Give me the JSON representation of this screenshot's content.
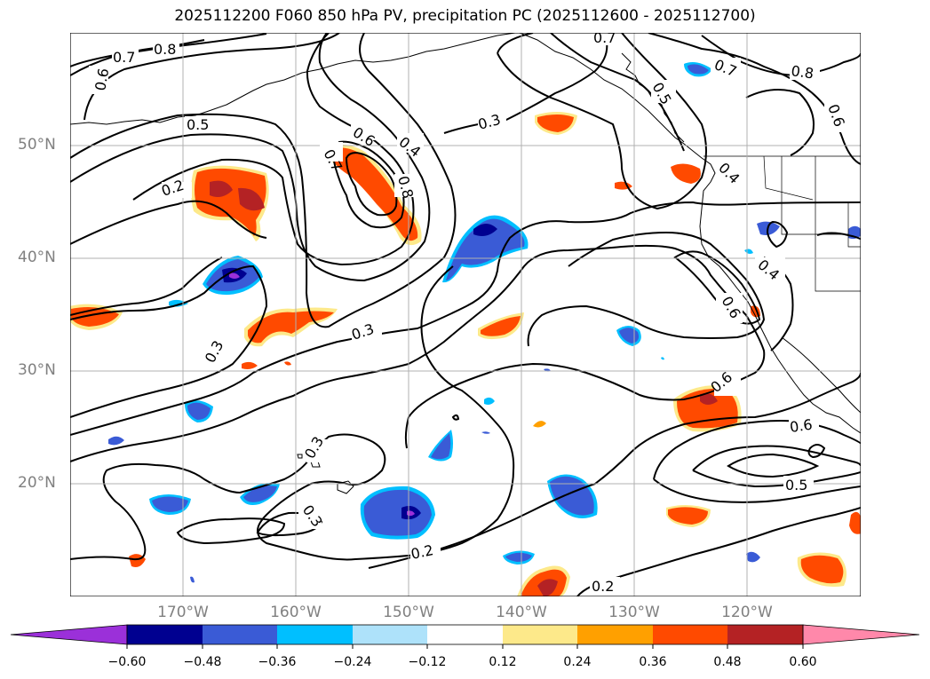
{
  "title": "2025112200 F060 850 hPa PV, precipitation PC (2025112600 - 2025112700)",
  "map": {
    "lat_labels": [
      "50°N",
      "40°N",
      "30°N",
      "20°N"
    ],
    "lon_labels": [
      "170°W",
      "160°W",
      "150°W",
      "140°W",
      "130°W",
      "120°W"
    ],
    "extent": {
      "lon_min": -180,
      "lon_max": -110,
      "lat_min": 10,
      "lat_max": 60
    },
    "gridlines": true
  },
  "pv_contour_labels": [
    "0.8",
    "0.7",
    "0.6",
    "0.5",
    "0.2",
    "0.6",
    "0.4",
    "0.7",
    "0.8",
    "0.3",
    "0.7",
    "0.5",
    "0.7",
    "0.8",
    "0.6",
    "0.4",
    "0.4",
    "0.6",
    "0.3",
    "0.3",
    "0.3",
    "0.3",
    "0.2",
    "0.6",
    "0.6",
    "0.5",
    "0.2"
  ],
  "colorbar": {
    "ticks": [
      "−0.60",
      "−0.48",
      "−0.36",
      "−0.24",
      "−0.12",
      "0.12",
      "0.24",
      "0.36",
      "0.48",
      "0.60"
    ],
    "colors": {
      "neg_extreme": "#9b30d9",
      "neg_060": "#000090",
      "neg_048": "#3a5bd6",
      "neg_036": "#00bfff",
      "neg_024": "#aee2fa",
      "neutral": "#ffffff",
      "pos_012": "#fde98a",
      "pos_024": "#ffa000",
      "pos_036": "#ff4a00",
      "pos_048": "#b42224",
      "pos_extreme": "#ff88aa"
    }
  }
}
